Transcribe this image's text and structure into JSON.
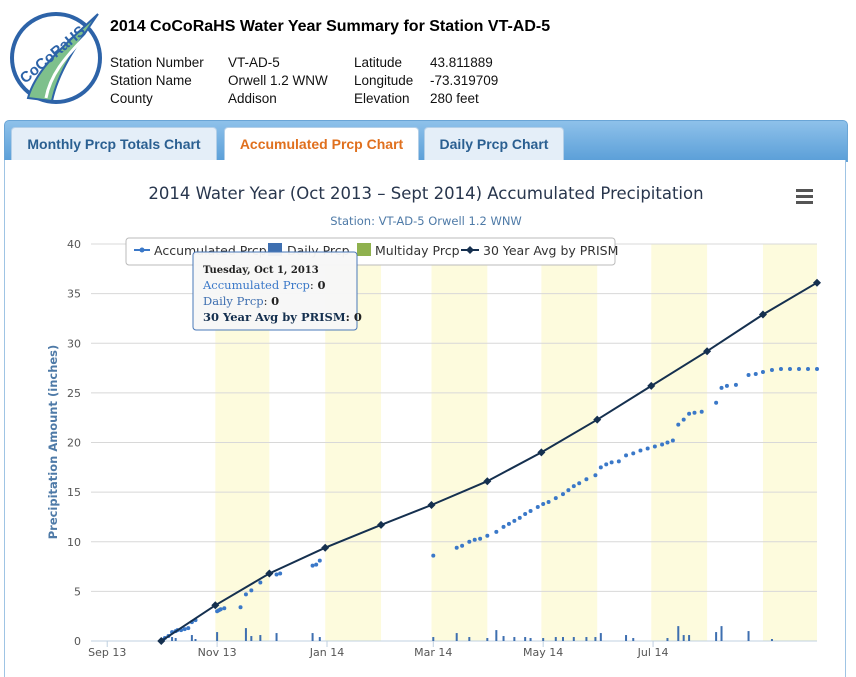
{
  "header": {
    "title": "2014 CoCoRaHS Water Year Summary for Station VT-AD-5",
    "logo_text": "CoCoRaHS",
    "fields": [
      {
        "label": "Station Number",
        "value": "VT-AD-5"
      },
      {
        "label": "Station Name",
        "value": "Orwell 1.2 WNW"
      },
      {
        "label": "County",
        "value": "Addison"
      },
      {
        "label": "Latitude",
        "value": "43.811889"
      },
      {
        "label": "Longitude",
        "value": "-73.319709"
      },
      {
        "label": "Elevation",
        "value": "280 feet"
      }
    ]
  },
  "tabs": [
    {
      "label": "Monthly Prcp Totals Chart",
      "active": false
    },
    {
      "label": "Accumulated Prcp Chart",
      "active": true
    },
    {
      "label": "Daily Prcp Chart",
      "active": false
    }
  ],
  "colors": {
    "accumulated": "#3a78c8",
    "daily": "#3e6fb0",
    "multiday": "#8fb14e",
    "prism": "#15304f",
    "month_band": "#fdfbdd",
    "active_tab": "#e0701e"
  },
  "tooltip": {
    "date": "Tuesday, Oct 1, 2013",
    "rows": [
      {
        "label": "Accumulated Prcp",
        "value": "0"
      },
      {
        "label": "Daily Prcp",
        "value": "0"
      },
      {
        "label": "30 Year Avg by PRISM",
        "value": "0"
      }
    ]
  },
  "chart_data": {
    "type": "line",
    "title": "2014 Water Year (Oct 2013 – Sept 2014) Accumulated Precipitation",
    "subtitle": "Station: VT-AD-5 Orwell 1.2 WNW",
    "ylabel": "Precipitation Amount (inches)",
    "xlabel": "",
    "ylim": [
      0,
      40
    ],
    "yticks": [
      0,
      5,
      10,
      15,
      20,
      25,
      30,
      35,
      40
    ],
    "xlim": [
      "2013-08-23",
      "2014-09-30"
    ],
    "xticks": [
      {
        "label": "Sep 13",
        "date": "2013-09-01"
      },
      {
        "label": "Nov 13",
        "date": "2013-11-01"
      },
      {
        "label": "Jan 14",
        "date": "2014-01-01"
      },
      {
        "label": "Mar 14",
        "date": "2014-03-01"
      },
      {
        "label": "May 14",
        "date": "2014-05-01"
      },
      {
        "label": "Jul 14",
        "date": "2014-07-01"
      }
    ],
    "month_bands": [
      [
        "2013-10-31",
        "2013-11-30"
      ],
      [
        "2013-12-31",
        "2014-01-31"
      ],
      [
        "2014-02-28",
        "2014-03-31"
      ],
      [
        "2014-04-30",
        "2014-05-31"
      ],
      [
        "2014-06-30",
        "2014-07-31"
      ],
      [
        "2014-08-31",
        "2014-09-30"
      ]
    ],
    "legend": {
      "position": "top-left",
      "items": [
        "Accumulated Prcp",
        "Daily Prcp",
        "Multiday Prcp",
        "30 Year Avg by PRISM"
      ]
    },
    "grid": true,
    "menu_icon": "hamburger-menu-icon",
    "series": [
      {
        "name": "30 Year Avg by PRISM",
        "type": "line",
        "points": [
          [
            "2013-10-01",
            0
          ],
          [
            "2013-10-31",
            3.6
          ],
          [
            "2013-11-30",
            6.8
          ],
          [
            "2013-12-31",
            9.4
          ],
          [
            "2014-01-31",
            11.7
          ],
          [
            "2014-02-28",
            13.7
          ],
          [
            "2014-03-31",
            16.1
          ],
          [
            "2014-04-30",
            19.0
          ],
          [
            "2014-05-31",
            22.3
          ],
          [
            "2014-06-30",
            25.7
          ],
          [
            "2014-07-31",
            29.2
          ],
          [
            "2014-08-31",
            32.9
          ],
          [
            "2014-09-30",
            36.1
          ]
        ]
      },
      {
        "name": "Accumulated Prcp",
        "type": "scatter",
        "points": [
          [
            "2013-10-01",
            0
          ],
          [
            "2013-10-02",
            0.1
          ],
          [
            "2013-10-03",
            0.3
          ],
          [
            "2013-10-05",
            0.5
          ],
          [
            "2013-10-07",
            0.9
          ],
          [
            "2013-10-09",
            1.0
          ],
          [
            "2013-10-10",
            1.1
          ],
          [
            "2013-10-12",
            1.1
          ],
          [
            "2013-10-14",
            1.2
          ],
          [
            "2013-10-16",
            1.3
          ],
          [
            "2013-10-18",
            1.9
          ],
          [
            "2013-10-20",
            2.1
          ],
          [
            "2013-11-01",
            3.0
          ],
          [
            "2013-11-02",
            3.1
          ],
          [
            "2013-11-03",
            3.2
          ],
          [
            "2013-11-05",
            3.3
          ],
          [
            "2013-11-14",
            3.4
          ],
          [
            "2013-11-17",
            4.7
          ],
          [
            "2013-11-20",
            5.1
          ],
          [
            "2013-11-25",
            5.9
          ],
          [
            "2013-12-04",
            6.7
          ],
          [
            "2013-12-06",
            6.8
          ],
          [
            "2013-12-24",
            7.6
          ],
          [
            "2013-12-26",
            7.7
          ],
          [
            "2013-12-28",
            8.1
          ],
          [
            "2014-03-01",
            8.6
          ],
          [
            "2014-03-14",
            9.4
          ],
          [
            "2014-03-17",
            9.6
          ],
          [
            "2014-03-21",
            10.0
          ],
          [
            "2014-03-24",
            10.2
          ],
          [
            "2014-03-27",
            10.3
          ],
          [
            "2014-03-31",
            10.6
          ],
          [
            "2014-04-05",
            11.0
          ],
          [
            "2014-04-09",
            11.5
          ],
          [
            "2014-04-12",
            11.8
          ],
          [
            "2014-04-15",
            12.1
          ],
          [
            "2014-04-18",
            12.4
          ],
          [
            "2014-04-21",
            12.8
          ],
          [
            "2014-04-24",
            13.1
          ],
          [
            "2014-04-28",
            13.5
          ],
          [
            "2014-05-01",
            13.8
          ],
          [
            "2014-05-04",
            14.0
          ],
          [
            "2014-05-08",
            14.4
          ],
          [
            "2014-05-12",
            14.8
          ],
          [
            "2014-05-15",
            15.2
          ],
          [
            "2014-05-18",
            15.6
          ],
          [
            "2014-05-21",
            15.9
          ],
          [
            "2014-05-25",
            16.3
          ],
          [
            "2014-05-30",
            16.7
          ],
          [
            "2014-06-02",
            17.5
          ],
          [
            "2014-06-05",
            17.8
          ],
          [
            "2014-06-08",
            18.0
          ],
          [
            "2014-06-12",
            18.1
          ],
          [
            "2014-06-16",
            18.7
          ],
          [
            "2014-06-20",
            18.9
          ],
          [
            "2014-06-24",
            19.2
          ],
          [
            "2014-06-28",
            19.4
          ],
          [
            "2014-07-02",
            19.6
          ],
          [
            "2014-07-06",
            19.8
          ],
          [
            "2014-07-09",
            20.0
          ],
          [
            "2014-07-12",
            20.2
          ],
          [
            "2014-07-15",
            21.8
          ],
          [
            "2014-07-18",
            22.3
          ],
          [
            "2014-07-21",
            22.9
          ],
          [
            "2014-07-24",
            23.0
          ],
          [
            "2014-07-28",
            23.1
          ],
          [
            "2014-08-05",
            24.0
          ],
          [
            "2014-08-08",
            25.5
          ],
          [
            "2014-08-11",
            25.7
          ],
          [
            "2014-08-16",
            25.8
          ],
          [
            "2014-08-23",
            26.8
          ],
          [
            "2014-08-27",
            26.9
          ],
          [
            "2014-08-31",
            27.1
          ],
          [
            "2014-09-05",
            27.3
          ],
          [
            "2014-09-10",
            27.4
          ],
          [
            "2014-09-15",
            27.4
          ],
          [
            "2014-09-20",
            27.4
          ],
          [
            "2014-09-25",
            27.4
          ],
          [
            "2014-09-30",
            27.4
          ]
        ]
      },
      {
        "name": "Daily Prcp",
        "type": "bar",
        "points": [
          [
            "2013-10-07",
            0.4
          ],
          [
            "2013-10-09",
            0.3
          ],
          [
            "2013-10-18",
            0.6
          ],
          [
            "2013-10-20",
            0.2
          ],
          [
            "2013-11-01",
            0.9
          ],
          [
            "2013-11-17",
            1.3
          ],
          [
            "2013-11-20",
            0.5
          ],
          [
            "2013-11-25",
            0.6
          ],
          [
            "2013-12-04",
            0.8
          ],
          [
            "2013-12-24",
            0.8
          ],
          [
            "2013-12-28",
            0.4
          ],
          [
            "2014-03-01",
            0.4
          ],
          [
            "2014-03-14",
            0.8
          ],
          [
            "2014-03-21",
            0.4
          ],
          [
            "2014-03-31",
            0.3
          ],
          [
            "2014-04-05",
            1.1
          ],
          [
            "2014-04-09",
            0.5
          ],
          [
            "2014-04-15",
            0.4
          ],
          [
            "2014-04-21",
            0.4
          ],
          [
            "2014-04-24",
            0.3
          ],
          [
            "2014-05-01",
            0.3
          ],
          [
            "2014-05-08",
            0.4
          ],
          [
            "2014-05-12",
            0.4
          ],
          [
            "2014-05-18",
            0.4
          ],
          [
            "2014-05-25",
            0.4
          ],
          [
            "2014-05-30",
            0.4
          ],
          [
            "2014-06-02",
            0.8
          ],
          [
            "2014-06-16",
            0.6
          ],
          [
            "2014-06-20",
            0.3
          ],
          [
            "2014-07-09",
            0.3
          ],
          [
            "2014-07-15",
            1.5
          ],
          [
            "2014-07-18",
            0.6
          ],
          [
            "2014-07-21",
            0.6
          ],
          [
            "2014-08-05",
            0.9
          ],
          [
            "2014-08-08",
            1.5
          ],
          [
            "2014-08-23",
            1.0
          ],
          [
            "2014-09-05",
            0.2
          ]
        ]
      }
    ]
  }
}
